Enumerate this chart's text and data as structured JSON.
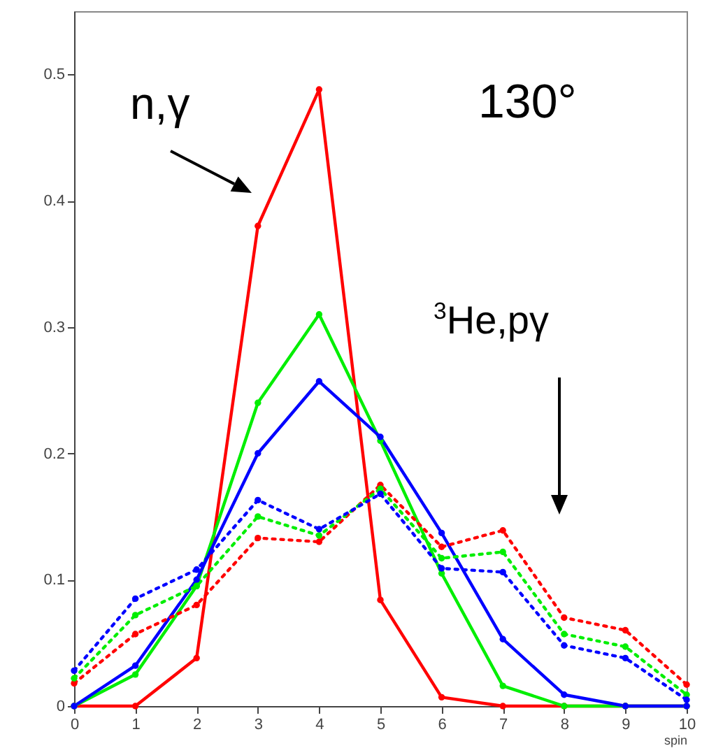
{
  "chart_data": {
    "type": "line",
    "xlabel": "spin",
    "x": [
      0,
      1,
      2,
      3,
      4,
      5,
      6,
      7,
      8,
      9,
      10
    ],
    "xlim": [
      0,
      10
    ],
    "xticks": [
      0,
      1,
      2,
      3,
      4,
      5,
      6,
      7,
      8,
      9,
      10
    ],
    "ylim": [
      0,
      0.55
    ],
    "yticks": [
      0,
      0.1,
      0.2,
      0.3,
      0.4,
      0.5
    ],
    "grid": false,
    "marker": "circle",
    "series": [
      {
        "color": "#ff0000",
        "line_style": "solid",
        "values": [
          0,
          0,
          0.038,
          0.38,
          0.488,
          0.084,
          0.007,
          0,
          0,
          0,
          0
        ]
      },
      {
        "color": "#00ee00",
        "line_style": "solid",
        "values": [
          0,
          0.025,
          0.095,
          0.24,
          0.31,
          0.21,
          0.105,
          0.016,
          0,
          0,
          0
        ]
      },
      {
        "color": "#0000ff",
        "line_style": "solid",
        "values": [
          0,
          0.032,
          0.1,
          0.2,
          0.257,
          0.213,
          0.137,
          0.053,
          0.009,
          0,
          0
        ]
      },
      {
        "color": "#ff0000",
        "line_style": "dotted",
        "values": [
          0.018,
          0.057,
          0.08,
          0.133,
          0.13,
          0.175,
          0.126,
          0.139,
          0.07,
          0.06,
          0.017
        ]
      },
      {
        "color": "#00ee00",
        "line_style": "dotted",
        "values": [
          0.022,
          0.072,
          0.095,
          0.15,
          0.135,
          0.172,
          0.117,
          0.122,
          0.057,
          0.047,
          0.009
        ]
      },
      {
        "color": "#0000ff",
        "line_style": "dotted",
        "values": [
          0.028,
          0.085,
          0.108,
          0.163,
          0.14,
          0.168,
          0.109,
          0.106,
          0.048,
          0.038,
          0.005
        ]
      }
    ],
    "annotations": [
      "n,γ",
      "130°",
      "$^{3}$He,pγ"
    ]
  }
}
